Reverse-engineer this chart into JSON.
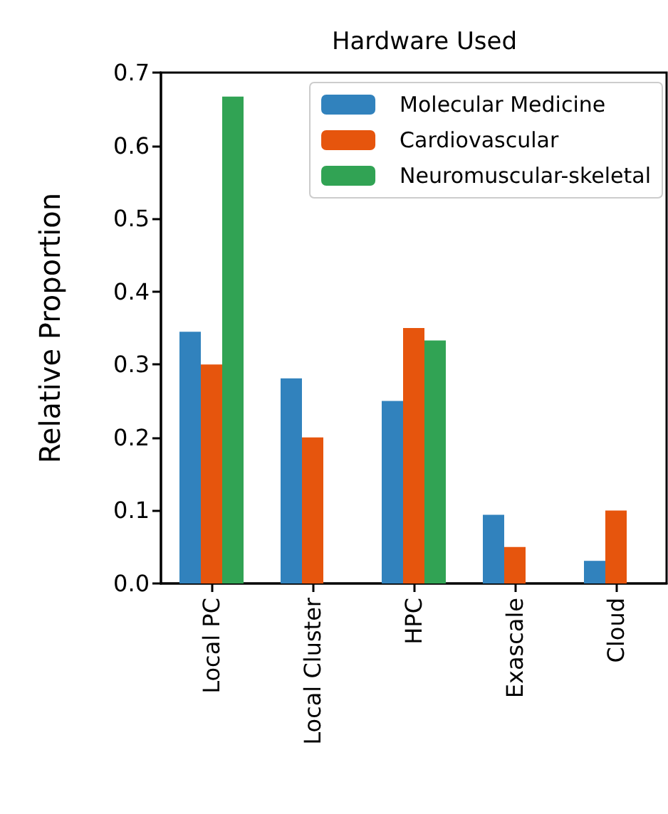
{
  "chart_data": {
    "type": "bar",
    "title": "Hardware Used",
    "ylabel": "Relative Proportion",
    "categories": [
      "Local PC",
      "Local Cluster",
      "HPC",
      "Exascale",
      "Cloud"
    ],
    "series": [
      {
        "name": "Molecular Medicine",
        "color": "#3182bd",
        "values": [
          0.345,
          0.281,
          0.25,
          0.094,
          0.031
        ]
      },
      {
        "name": "Cardiovascular",
        "color": "#e6550d",
        "values": [
          0.3,
          0.2,
          0.35,
          0.05,
          0.1
        ]
      },
      {
        "name": "Neuromuscular-skeletal",
        "color": "#31a354",
        "values": [
          0.667,
          0,
          0.333,
          0,
          0
        ]
      }
    ],
    "ylim": [
      0,
      0.7
    ],
    "yticks": [
      {
        "value": 0,
        "label": "0.0"
      },
      {
        "value": 0.1,
        "label": "0.1"
      },
      {
        "value": 0.2,
        "label": "0.2"
      },
      {
        "value": 0.3,
        "label": "0.3"
      },
      {
        "value": 0.4,
        "label": "0.4"
      },
      {
        "value": 0.5,
        "label": "0.5"
      },
      {
        "value": 0.6,
        "label": "0.6"
      },
      {
        "value": 0.7,
        "label": "0.7"
      }
    ],
    "grid": false,
    "legend": "top right"
  }
}
